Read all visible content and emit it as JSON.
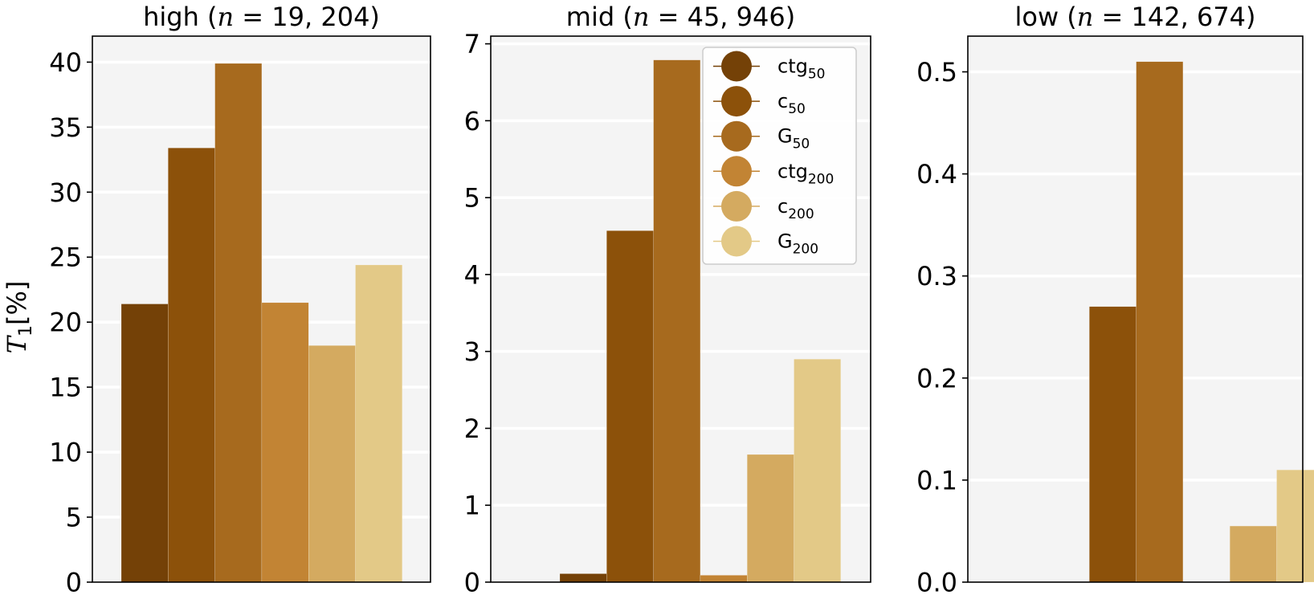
{
  "chart_data": [
    {
      "type": "bar",
      "title_main": "high (",
      "title_var": "n",
      "title_rest": " = 19, 204)",
      "ylabel_var": "T",
      "ylabel_sub": "1",
      "ylabel_unit": "[%]",
      "ylim": [
        0,
        42
      ],
      "ticks": [
        0,
        5,
        10,
        15,
        20,
        25,
        30,
        35,
        40
      ],
      "tick_labels": [
        "0",
        "5",
        "10",
        "15",
        "20",
        "25",
        "30",
        "35",
        "40"
      ],
      "series": [
        {
          "name": "ctg50",
          "value": 21.4
        },
        {
          "name": "c50",
          "value": 33.4
        },
        {
          "name": "G50",
          "value": 39.9
        },
        {
          "name": "ctg200",
          "value": 21.5
        },
        {
          "name": "c200",
          "value": 18.2
        },
        {
          "name": "G200",
          "value": 24.4
        }
      ],
      "grid": true,
      "legend": false
    },
    {
      "type": "bar",
      "title_main": "mid (",
      "title_var": "n",
      "title_rest": " = 45, 946)",
      "ylim": [
        0,
        7.1
      ],
      "ticks": [
        0,
        1,
        2,
        3,
        4,
        5,
        6,
        7
      ],
      "tick_labels": [
        "0",
        "1",
        "2",
        "3",
        "4",
        "5",
        "6",
        "7"
      ],
      "series": [
        {
          "name": "ctg50",
          "value": 0.11
        },
        {
          "name": "c50",
          "value": 4.57
        },
        {
          "name": "G50",
          "value": 6.79
        },
        {
          "name": "ctg200",
          "value": 0.09
        },
        {
          "name": "c200",
          "value": 1.66
        },
        {
          "name": "G200",
          "value": 2.9
        }
      ],
      "grid": true,
      "legend": true,
      "legend_placement": "top-right"
    },
    {
      "type": "bar",
      "title_main": "low (",
      "title_var": "n",
      "title_rest": " = 142, 674)",
      "ylim": [
        0,
        0.535
      ],
      "ticks": [
        0,
        0.1,
        0.2,
        0.3,
        0.4,
        0.5
      ],
      "tick_labels": [
        "0.0",
        "0.1",
        "0.2",
        "0.3",
        "0.4",
        "0.5"
      ],
      "series": [
        {
          "name": "ctg50",
          "value": 0
        },
        {
          "name": "c50",
          "value": 0.27
        },
        {
          "name": "G50",
          "value": 0.51
        },
        {
          "name": "ctg200",
          "value": 0
        },
        {
          "name": "c200",
          "value": 0.055
        },
        {
          "name": "G200",
          "value": 0.11
        }
      ],
      "grid": true,
      "legend": false
    }
  ],
  "legend": [
    {
      "base": "ctg",
      "sub": "50",
      "color": "#744107"
    },
    {
      "base": "c",
      "sub": "50",
      "color": "#8c510a"
    },
    {
      "base": "G",
      "sub": "50",
      "color": "#a76a1e"
    },
    {
      "base": "ctg",
      "sub": "200",
      "color": "#c28434"
    },
    {
      "base": "c",
      "sub": "200",
      "color": "#d4aa60"
    },
    {
      "base": "G",
      "sub": "200",
      "color": "#e3c987"
    }
  ],
  "colors": {
    "plot_background": "#f4f4f4",
    "grid": "#ffffff",
    "axes": "#000000"
  }
}
